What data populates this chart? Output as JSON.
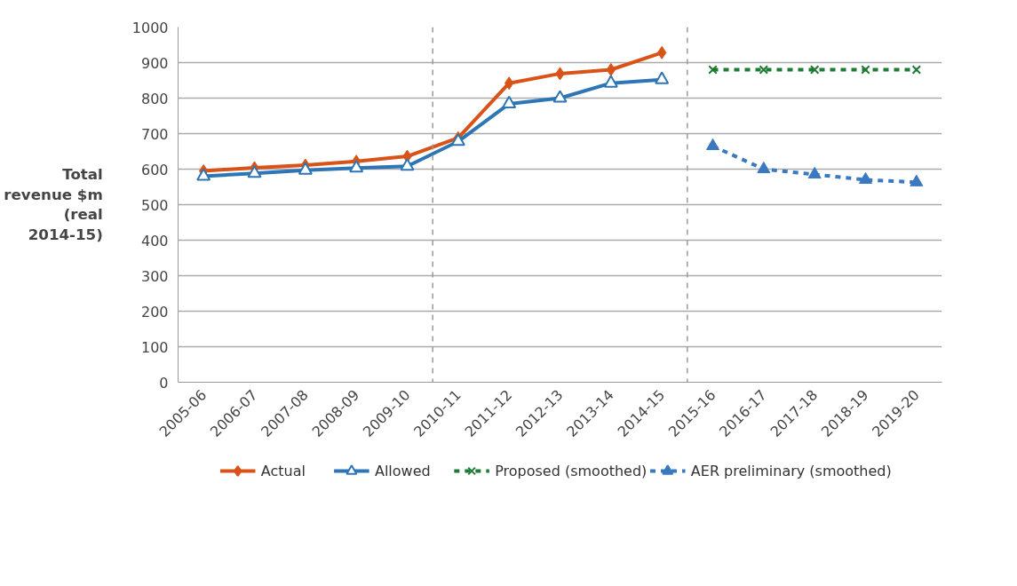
{
  "chart_data": {
    "type": "line",
    "ylabel": "Total revenue $m (real 2014-15)",
    "categories": [
      "2005-06",
      "2006-07",
      "2007-08",
      "2008-09",
      "2009-10",
      "2010-11",
      "2011-12",
      "2012-13",
      "2013-14",
      "2014-15",
      "2015-16",
      "2016-17",
      "2017-18",
      "2018-19",
      "2019-20"
    ],
    "series": [
      {
        "name": "Actual",
        "color": "#d95319",
        "marker": "diamond",
        "line_style": "solid",
        "values": [
          595,
          604,
          611,
          622,
          636,
          688,
          842,
          869,
          880,
          928,
          null,
          null,
          null,
          null,
          null
        ]
      },
      {
        "name": "Allowed",
        "color": "#2e75b6",
        "marker": "triangle",
        "line_style": "solid",
        "values": [
          580,
          588,
          597,
          603,
          608,
          678,
          784,
          800,
          842,
          852,
          null,
          null,
          null,
          null,
          null
        ]
      },
      {
        "name": "Proposed (smoothed)",
        "color": "#1e7b34",
        "marker": "cross",
        "line_style": "dashed",
        "values": [
          null,
          null,
          null,
          null,
          null,
          null,
          null,
          null,
          null,
          null,
          880,
          880,
          880,
          880,
          880
        ]
      },
      {
        "name": "AER preliminary (smoothed)",
        "color": "#3a78c0",
        "marker": "triangle",
        "line_style": "dashed",
        "values": [
          null,
          null,
          null,
          null,
          null,
          null,
          null,
          null,
          null,
          null,
          665,
          600,
          585,
          570,
          563
        ]
      }
    ],
    "ylim": [
      0,
      1000
    ],
    "yticks": [
      0,
      100,
      200,
      300,
      400,
      500,
      600,
      700,
      800,
      900,
      1000
    ],
    "grid": "y",
    "legend": "bottom"
  }
}
